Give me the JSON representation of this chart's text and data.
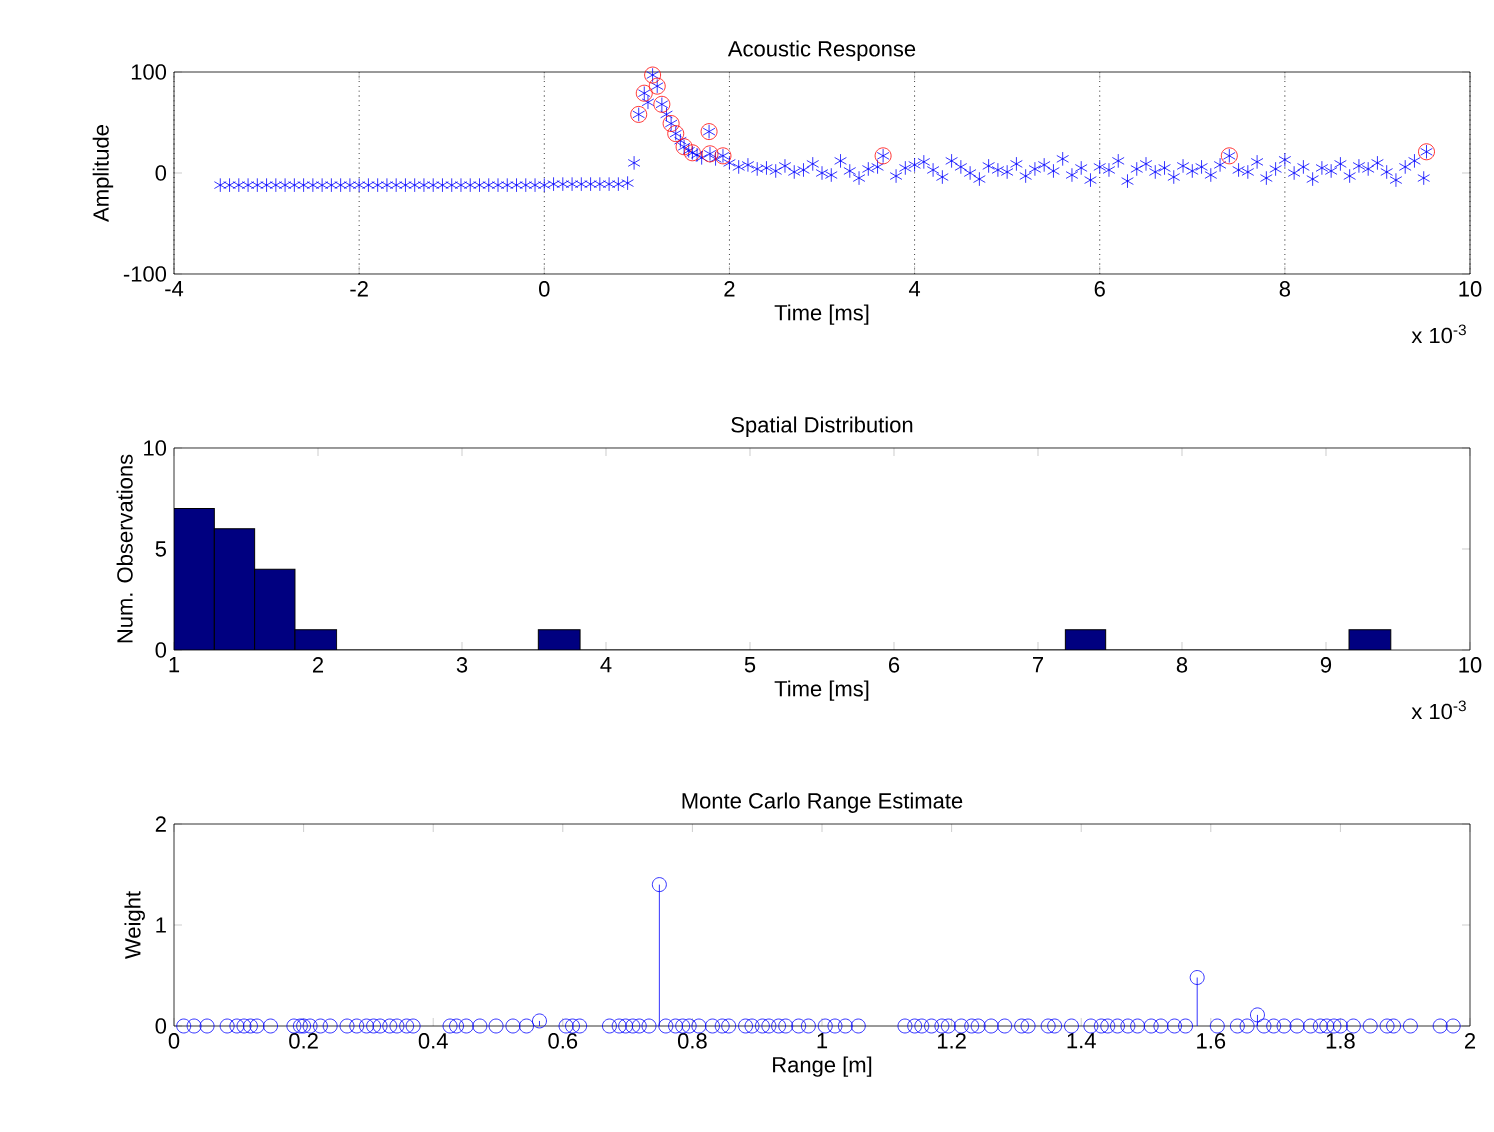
{
  "chart_data": [
    {
      "type": "scatter",
      "title": "Acoustic Response",
      "xlabel": "Time [ms]",
      "ylabel": "Amplitude",
      "xlim": [
        -4,
        10
      ],
      "ylim": [
        -100,
        100
      ],
      "xticks": [
        -4,
        -2,
        0,
        2,
        4,
        6,
        8,
        10
      ],
      "yticks": [
        -100,
        0,
        100
      ],
      "grid": "x",
      "annotations": [
        "x 10$^{-3}$"
      ],
      "series": [
        {
          "color": "#0000ff",
          "marker": "cross",
          "x": [
            -3.5,
            -3.4,
            -3.3,
            -3.2,
            -3.1,
            -3.0,
            -2.9,
            -2.8,
            -2.7,
            -2.6,
            -2.5,
            -2.4,
            -2.3,
            -2.2,
            -2.1,
            -2.0,
            -1.9,
            -1.8,
            -1.7,
            -1.6,
            -1.5,
            -1.4,
            -1.3,
            -1.2,
            -1.1,
            -1.0,
            -0.9,
            -0.8,
            -0.7,
            -0.6,
            -0.5,
            -0.4,
            -0.3,
            -0.2,
            -0.1,
            0.0,
            0.1,
            0.2,
            0.3,
            0.4,
            0.5,
            0.6,
            0.7,
            0.8,
            0.9,
            0.97,
            1.02,
            1.08,
            1.12,
            1.17,
            1.22,
            1.27,
            1.32,
            1.37,
            1.42,
            1.47,
            1.51,
            1.56,
            1.6,
            1.65,
            1.7,
            1.78,
            1.79,
            1.85,
            1.93,
            2.0,
            2.1,
            2.2,
            2.3,
            2.4,
            2.5,
            2.6,
            2.7,
            2.8,
            2.9,
            3.0,
            3.1,
            3.2,
            3.3,
            3.4,
            3.5,
            3.6,
            3.66,
            3.8,
            3.9,
            4.0,
            4.1,
            4.2,
            4.3,
            4.4,
            4.5,
            4.6,
            4.7,
            4.8,
            4.9,
            5.0,
            5.1,
            5.2,
            5.3,
            5.4,
            5.5,
            5.6,
            5.7,
            5.8,
            5.9,
            6.0,
            6.1,
            6.2,
            6.3,
            6.4,
            6.5,
            6.6,
            6.7,
            6.8,
            6.9,
            7.0,
            7.1,
            7.2,
            7.3,
            7.4,
            7.5,
            7.6,
            7.7,
            7.8,
            7.9,
            8.0,
            8.1,
            8.2,
            8.3,
            8.4,
            8.5,
            8.6,
            8.7,
            8.8,
            8.9,
            9.0,
            9.1,
            9.2,
            9.3,
            9.4,
            9.5,
            9.53
          ],
          "values": [
            -12,
            -12,
            -12,
            -12,
            -12,
            -12,
            -12,
            -12,
            -12,
            -12,
            -12,
            -12,
            -12,
            -12,
            -12,
            -12,
            -12,
            -12,
            -12,
            -12,
            -12,
            -12,
            -12,
            -12,
            -12,
            -12,
            -12,
            -12,
            -12,
            -12,
            -12,
            -12,
            -12,
            -12,
            -12,
            -12,
            -11,
            -11,
            -11,
            -11,
            -11,
            -11,
            -11,
            -11,
            -10,
            10,
            58,
            79,
            70,
            97,
            86,
            68,
            58,
            49,
            39,
            32,
            26,
            22,
            20,
            18,
            15,
            41,
            19,
            14,
            17,
            10,
            6,
            8,
            4,
            5,
            2,
            7,
            1,
            3,
            9,
            0,
            -2,
            12,
            2,
            -5,
            4,
            6,
            17,
            -3,
            5,
            8,
            11,
            3,
            -4,
            12,
            6,
            0,
            -6,
            7,
            3,
            1,
            9,
            -3,
            4,
            8,
            2,
            14,
            -2,
            5,
            -7,
            6,
            3,
            12,
            -8,
            4,
            9,
            1,
            5,
            -4,
            7,
            2,
            6,
            -2,
            8,
            17,
            3,
            1,
            11,
            -5,
            4,
            13,
            0,
            6,
            -6,
            5,
            2,
            9,
            -3,
            7,
            4,
            10,
            1,
            -7,
            6,
            12,
            -5,
            21
          ]
        },
        {
          "color": "#ff0000",
          "marker": "circle",
          "x": [
            1.02,
            1.08,
            1.17,
            1.22,
            1.27,
            1.37,
            1.42,
            1.51,
            1.6,
            1.78,
            1.79,
            1.93,
            3.66,
            7.4,
            9.53
          ],
          "values": [
            58,
            79,
            97,
            86,
            68,
            49,
            39,
            26,
            20,
            41,
            19,
            17,
            17,
            17,
            21
          ]
        }
      ]
    },
    {
      "type": "histogram",
      "title": "Spatial Distribution",
      "xlabel": "Time [ms]",
      "ylabel": "Num. Observations",
      "xlim": [
        1,
        10
      ],
      "ylim": [
        0,
        10
      ],
      "xticks": [
        1,
        2,
        3,
        4,
        5,
        6,
        7,
        8,
        9,
        10
      ],
      "yticks": [
        0,
        5,
        10
      ],
      "color": "#000080",
      "annotations": [
        "x 10$^{-3}$"
      ],
      "bins": [
        1.0,
        1.28,
        1.56,
        1.84,
        2.13,
        3.53,
        3.82,
        7.19,
        7.47,
        9.16,
        9.45
      ],
      "values": [
        7,
        6,
        4,
        1,
        0,
        1,
        0,
        1,
        0,
        1
      ]
    },
    {
      "type": "lollipop",
      "title": "Monte Carlo Range Estimate",
      "xlabel": "Range [m]",
      "ylabel": "Weight",
      "xlim": [
        0,
        2
      ],
      "ylim": [
        0,
        2
      ],
      "xticks": [
        0,
        0.2,
        0.4,
        0.6,
        0.8,
        1,
        1.2,
        1.4,
        1.6,
        1.8,
        2
      ],
      "yticks": [
        0,
        1,
        2
      ],
      "color": "#0000ff",
      "marker": "circle",
      "x": [
        0.015,
        0.031,
        0.051,
        0.082,
        0.097,
        0.108,
        0.118,
        0.128,
        0.149,
        0.185,
        0.195,
        0.2,
        0.21,
        0.226,
        0.241,
        0.267,
        0.282,
        0.297,
        0.308,
        0.318,
        0.333,
        0.344,
        0.359,
        0.369,
        0.426,
        0.436,
        0.451,
        0.472,
        0.497,
        0.523,
        0.544,
        0.564,
        0.605,
        0.615,
        0.626,
        0.672,
        0.687,
        0.697,
        0.708,
        0.718,
        0.733,
        0.749,
        0.759,
        0.774,
        0.785,
        0.795,
        0.81,
        0.831,
        0.846,
        0.856,
        0.882,
        0.892,
        0.908,
        0.918,
        0.933,
        0.944,
        0.964,
        0.979,
        1.005,
        1.02,
        1.036,
        1.056,
        1.128,
        1.143,
        1.154,
        1.169,
        1.185,
        1.195,
        1.215,
        1.231,
        1.241,
        1.261,
        1.282,
        1.308,
        1.318,
        1.349,
        1.359,
        1.385,
        1.415,
        1.431,
        1.441,
        1.456,
        1.472,
        1.487,
        1.508,
        1.523,
        1.544,
        1.561,
        1.579,
        1.61,
        1.641,
        1.656,
        1.672,
        1.682,
        1.697,
        1.713,
        1.733,
        1.754,
        1.769,
        1.779,
        1.79,
        1.8,
        1.82,
        1.846,
        1.872,
        1.882,
        1.908,
        1.954,
        1.974
      ],
      "values": [
        0,
        0,
        0,
        0,
        0,
        0,
        0,
        0,
        0,
        0,
        0,
        0,
        0,
        0,
        0,
        0,
        0,
        0,
        0,
        0,
        0,
        0,
        0,
        0,
        0,
        0,
        0,
        0,
        0,
        0,
        0,
        0.05,
        0,
        0,
        0,
        0,
        0,
        0,
        0,
        0,
        0,
        1.4,
        0,
        0,
        0,
        0,
        0,
        0,
        0,
        0,
        0,
        0,
        0,
        0,
        0,
        0,
        0,
        0,
        0,
        0,
        0,
        0,
        0,
        0,
        0,
        0,
        0,
        0,
        0,
        0,
        0,
        0,
        0,
        0,
        0,
        0,
        0,
        0,
        0,
        0,
        0,
        0,
        0,
        0,
        0,
        0,
        0,
        0,
        0.48,
        0,
        0,
        0,
        0.11,
        0,
        0,
        0,
        0,
        0,
        0,
        0,
        0,
        0,
        0,
        0,
        0,
        0,
        0,
        0,
        0
      ]
    }
  ]
}
